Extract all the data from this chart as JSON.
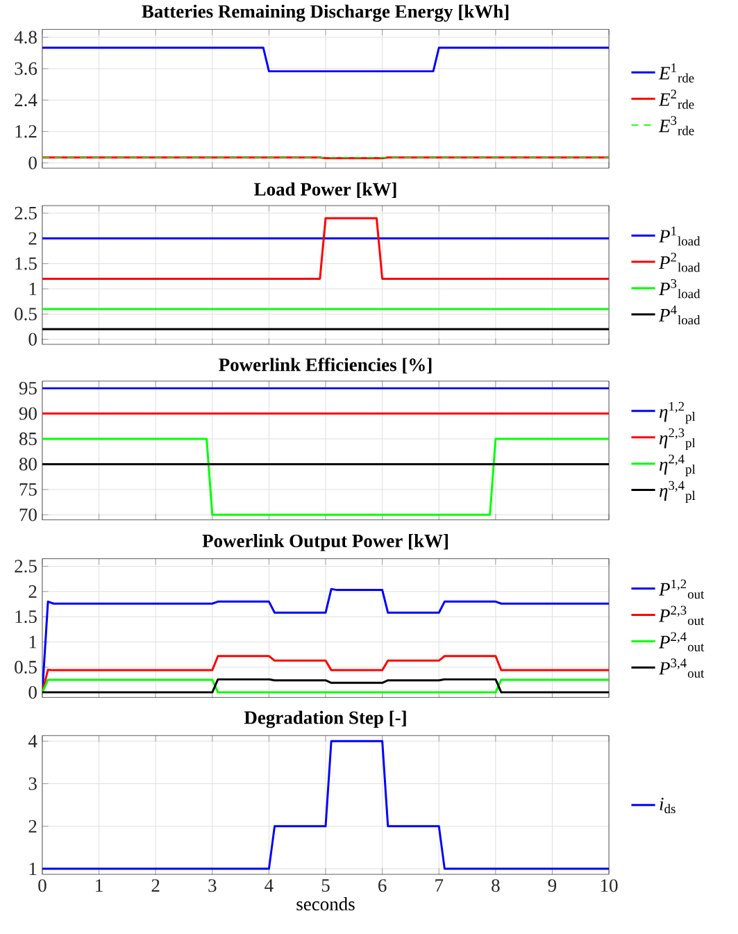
{
  "chart_data": [
    {
      "type": "line",
      "title": "Batteries Remaining Discharge Energy [kWh]",
      "xlim": [
        0,
        10
      ],
      "xticks": [
        0,
        1,
        2,
        3,
        4,
        5,
        6,
        7,
        8,
        9,
        10
      ],
      "ylim": [
        -0.2,
        5.1
      ],
      "yticks": [
        0,
        1.2,
        2.4,
        3.6,
        4.8
      ],
      "grid": true,
      "legend": "right",
      "tick_labels": "y",
      "series": [
        {
          "name": "*E*$^{1}$$_{rde}$",
          "color": "#0000ff",
          "x": [
            0,
            3.9,
            4.0,
            6.9,
            7.0,
            10
          ],
          "values": [
            4.4,
            4.4,
            3.5,
            3.5,
            4.4,
            4.4
          ]
        },
        {
          "name": "*E*$^{2}$$_{rde}$",
          "color": "#ff0000",
          "x": [
            0,
            4.9,
            5.0,
            6.0,
            6.1,
            10
          ],
          "values": [
            0.21,
            0.21,
            0.18,
            0.18,
            0.21,
            0.21
          ]
        },
        {
          "name": "*E*$^{3}$$_{rde}$",
          "color": "#00ff00",
          "line_style": "dashed",
          "x": [
            0,
            10
          ],
          "values": [
            0.21,
            0.21
          ]
        }
      ]
    },
    {
      "type": "line",
      "title": "Load Power [kW]",
      "xlim": [
        0,
        10
      ],
      "xticks": [
        0,
        1,
        2,
        3,
        4,
        5,
        6,
        7,
        8,
        9,
        10
      ],
      "ylim": [
        -0.1,
        2.65
      ],
      "yticks": [
        0,
        0.5,
        1,
        1.5,
        2,
        2.5
      ],
      "grid": true,
      "legend": "right",
      "tick_labels": "y",
      "series": [
        {
          "name": "*P*$^{1}$$_{load}$",
          "color": "#0000ff",
          "x": [
            0,
            10
          ],
          "values": [
            2,
            2
          ]
        },
        {
          "name": "*P*$^{2}$$_{load}$",
          "color": "#ff0000",
          "x": [
            0,
            4.9,
            5.0,
            5.9,
            6.0,
            10
          ],
          "values": [
            1.2,
            1.2,
            2.4,
            2.4,
            1.2,
            1.2
          ]
        },
        {
          "name": "*P*$^{3}$$_{load}$",
          "color": "#00ff00",
          "x": [
            0,
            10
          ],
          "values": [
            0.6,
            0.6
          ]
        },
        {
          "name": "*P*$^{4}$$_{load}$",
          "color": "#000000",
          "x": [
            0,
            10
          ],
          "values": [
            0.2,
            0.2
          ]
        }
      ]
    },
    {
      "type": "line",
      "title": "Powerlink Efficiencies [%]",
      "xlim": [
        0,
        10
      ],
      "xticks": [
        0,
        1,
        2,
        3,
        4,
        5,
        6,
        7,
        8,
        9,
        10
      ],
      "ylim": [
        69,
        96.4
      ],
      "yticks": [
        70,
        75,
        80,
        85,
        90,
        95
      ],
      "grid": true,
      "legend": "right",
      "tick_labels": "y",
      "series": [
        {
          "name": "*η*$^{1,2}$$_{pl}$",
          "color": "#0000ff",
          "x": [
            0,
            10
          ],
          "values": [
            95,
            95
          ]
        },
        {
          "name": "*η*$^{2,3}$$_{pl}$",
          "color": "#ff0000",
          "x": [
            0,
            10
          ],
          "values": [
            90,
            90
          ]
        },
        {
          "name": "*η*$^{2,4}$$_{pl}$",
          "color": "#00ff00",
          "x": [
            0,
            2.9,
            3.0,
            7.9,
            8.0,
            10
          ],
          "values": [
            85,
            85,
            70,
            70,
            85,
            85
          ]
        },
        {
          "name": "*η*$^{3,4}$$_{pl}$",
          "color": "#000000",
          "x": [
            0,
            10
          ],
          "values": [
            80,
            80
          ]
        }
      ]
    },
    {
      "type": "line",
      "title": "Powerlink Output Power [kW]",
      "xlim": [
        0,
        10
      ],
      "xticks": [
        0,
        1,
        2,
        3,
        4,
        5,
        6,
        7,
        8,
        9,
        10
      ],
      "ylim": [
        -0.1,
        2.65
      ],
      "yticks": [
        0,
        0.5,
        1,
        1.5,
        2,
        2.5
      ],
      "grid": true,
      "legend": "right",
      "tick_labels": "y",
      "series": [
        {
          "name": "*P*$^{1,2}$$_{out}$",
          "color": "#0000ff",
          "x": [
            0,
            0.1,
            0.2,
            3.0,
            3.1,
            4.0,
            4.1,
            5.0,
            5.1,
            5.2,
            6.0,
            6.1,
            7.0,
            7.1,
            8.0,
            8.1,
            10
          ],
          "values": [
            0,
            1.8,
            1.76,
            1.76,
            1.8,
            1.8,
            1.58,
            1.58,
            2.05,
            2.03,
            2.03,
            1.58,
            1.58,
            1.8,
            1.8,
            1.76,
            1.76
          ]
        },
        {
          "name": "*P*$^{2,3}$$_{out}$",
          "color": "#ff0000",
          "x": [
            0,
            0.1,
            0.2,
            3.0,
            3.1,
            4.0,
            4.1,
            5.0,
            5.1,
            6.0,
            6.1,
            7.0,
            7.1,
            8.0,
            8.1,
            10
          ],
          "values": [
            0,
            0.45,
            0.44,
            0.44,
            0.72,
            0.72,
            0.63,
            0.63,
            0.44,
            0.44,
            0.63,
            0.63,
            0.72,
            0.72,
            0.44,
            0.44
          ]
        },
        {
          "name": "*P*$^{2,4}$$_{out}$",
          "color": "#00ff00",
          "x": [
            0,
            0.1,
            3.0,
            3.1,
            8.0,
            8.1,
            10
          ],
          "values": [
            0,
            0.25,
            0.25,
            0,
            0,
            0.25,
            0.25
          ]
        },
        {
          "name": "*P*$^{3,4}$$_{out}$",
          "color": "#000000",
          "x": [
            0,
            3.0,
            3.1,
            4.0,
            4.1,
            5.0,
            5.1,
            6.0,
            6.1,
            7.0,
            7.1,
            8.0,
            8.1,
            10
          ],
          "values": [
            0,
            0,
            0.26,
            0.26,
            0.24,
            0.24,
            0.19,
            0.19,
            0.24,
            0.24,
            0.26,
            0.26,
            0,
            0
          ]
        }
      ]
    },
    {
      "type": "line",
      "title": "Degradation Step [-]",
      "xlabel": "seconds",
      "xlim": [
        0,
        10
      ],
      "xticks": [
        0,
        1,
        2,
        3,
        4,
        5,
        6,
        7,
        8,
        9,
        10
      ],
      "ylim": [
        0.87,
        4.13
      ],
      "yticks": [
        1,
        2,
        3,
        4
      ],
      "grid": true,
      "legend": "right",
      "series": [
        {
          "name": "*i*$_{ds}$",
          "color": "#0000ff",
          "x": [
            0,
            4.0,
            4.1,
            5.0,
            5.1,
            6.0,
            6.1,
            7.0,
            7.1,
            10
          ],
          "values": [
            1,
            1,
            2,
            2,
            4,
            4,
            2,
            2,
            1,
            1
          ]
        }
      ]
    }
  ]
}
